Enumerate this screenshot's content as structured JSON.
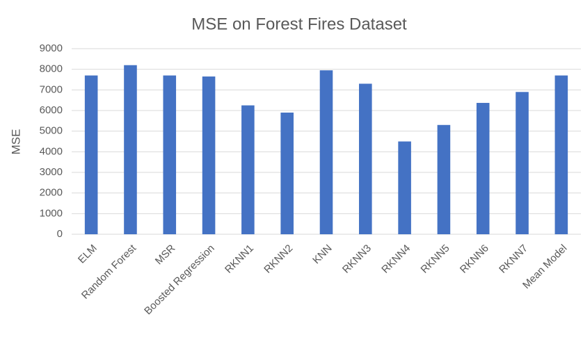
{
  "chart_data": {
    "type": "bar",
    "title": "MSE on Forest Fires Dataset",
    "y_label": "MSE",
    "categories": [
      "ELM",
      "Random Forest",
      "MSR",
      "Boosted Regression",
      "RKNN1",
      "RKNN2",
      "KNN",
      "RKNN3",
      "RKNN4",
      "RKNN5",
      "RKNN6",
      "RKNN7",
      "Mean Model"
    ],
    "values": [
      7700,
      8200,
      7700,
      7650,
      6250,
      5900,
      7950,
      7300,
      4500,
      5300,
      6370,
      6900,
      7700
    ],
    "color": "#4472c4",
    "ylim": [
      0,
      9000
    ],
    "yticks": [
      0,
      1000,
      2000,
      3000,
      4000,
      5000,
      6000,
      7000,
      8000,
      9000
    ],
    "grid": true
  }
}
